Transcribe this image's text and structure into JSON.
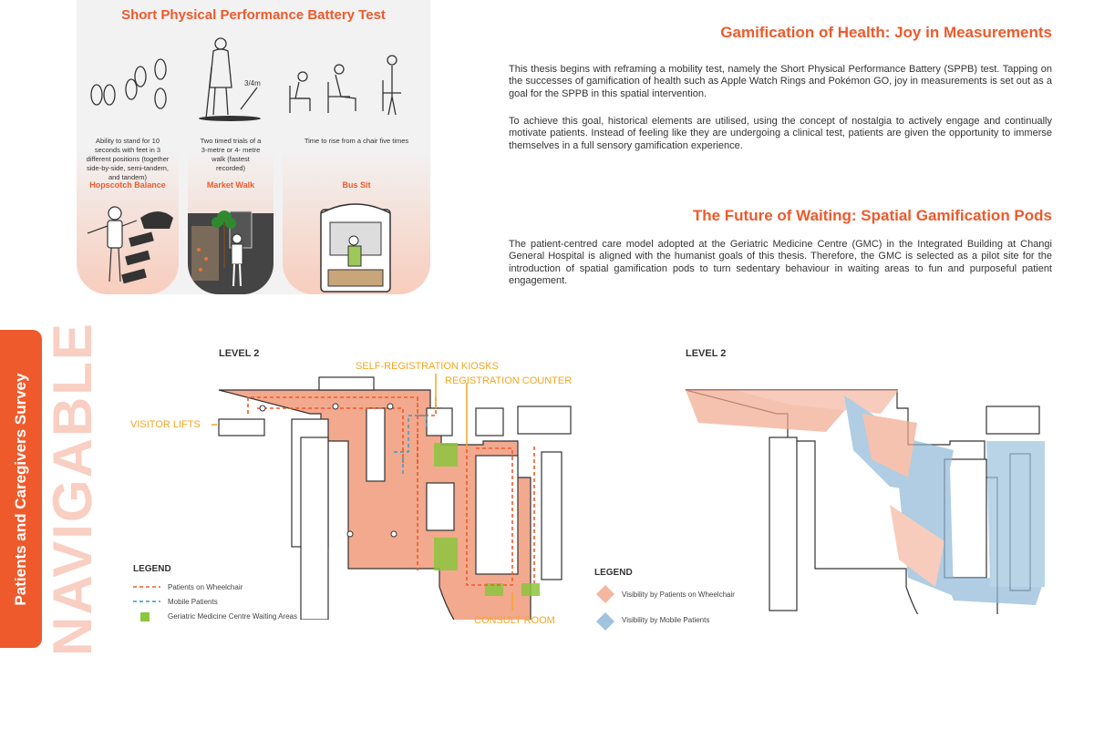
{
  "sppb": {
    "title": "Short Physical Performance Battery Test",
    "cards": [
      {
        "description": "Ability to stand for 10 seconds with feet in 3 different positions (together side-by-side, semi-tandem, and tandem)",
        "name": "Hopscotch Balance"
      },
      {
        "description": "Two timed trials of a 3-metre or 4- metre walk (fastest recorded)",
        "name": "Market Walk",
        "annotation": "3/4m"
      },
      {
        "description": "Time to rise from a chair five times",
        "name": "Bus Sit"
      }
    ]
  },
  "section1": {
    "heading": "Gamification of Health: Joy in Measurements",
    "paragraphs": [
      "This thesis begins with reframing a mobility test, namely the Short Physical Performance Battery (SPPB) test. Tapping on the successes of gamification of health such as Apple Watch Rings and Pokémon GO, joy in measurements is set out as a goal for the SPPB in this spatial intervention.",
      "To achieve this goal, historical elements are utilised, using the concept of nostalgia to actively engage and continually motivate patients. Instead of feeling like they are undergoing a clinical test, patients are given the opportunity to immerse themselves in a full sensory gamification experience."
    ]
  },
  "section2": {
    "heading": "The Future of Waiting: Spatial Gamification Pods",
    "paragraphs": [
      "The patient-centred care model adopted at the Geriatric Medicine Centre (GMC) in the Integrated Building at Changi General Hospital is aligned with the humanist goals of this thesis. Therefore, the GMC is selected as a pilot site for the introduction of spatial gamification pods to turn sedentary behaviour in waiting areas to fun and purposeful patient engagement."
    ]
  },
  "side_tab": {
    "label": "Patients and Caregivers Survey",
    "watermark": "NAVIGABLE"
  },
  "map_left": {
    "level": "LEVEL 2",
    "labels": {
      "kiosks": "SELF-REGISTRATION KIOSKS",
      "counter": "REGISTRATION COUNTER",
      "lifts": "VISITOR LIFTS",
      "consult": "CONSULT ROOM"
    },
    "legend": {
      "title": "LEGEND",
      "items": [
        "Patients on Wheelchair",
        "Mobile Patients",
        "Geriatric Medicine Centre Waiting Areas"
      ]
    }
  },
  "map_right": {
    "level": "LEVEL 2",
    "legend": {
      "title": "LEGEND",
      "items": [
        "Visibility by Patients on Wheelchair",
        "Visibility by Mobile Patients"
      ]
    }
  },
  "colors": {
    "accent": "#ee5a2c",
    "label": "#f5a623",
    "salmon": "#f2a98e",
    "blue": "#8fb8d8",
    "green": "#8cc63f"
  }
}
